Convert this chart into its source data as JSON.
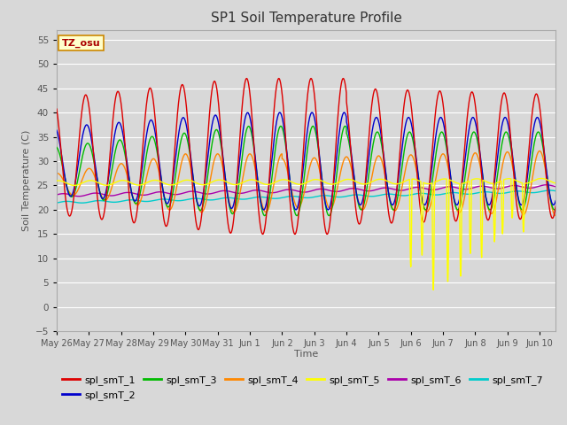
{
  "title": "SP1 Soil Temperature Profile",
  "xlabel": "Time",
  "ylabel": "Soil Temperature (C)",
  "ylim": [
    -5,
    57
  ],
  "yticks": [
    -5,
    0,
    5,
    10,
    15,
    20,
    25,
    30,
    35,
    40,
    45,
    50,
    55
  ],
  "annotation_text": "TZ_osu",
  "annotation_bg": "#ffffcc",
  "annotation_border": "#cc8800",
  "series_colors": {
    "spl_smT_1": "#dd0000",
    "spl_smT_2": "#0000cc",
    "spl_smT_3": "#00bb00",
    "spl_smT_4": "#ff8800",
    "spl_smT_5": "#ffff00",
    "spl_smT_6": "#aa00aa",
    "spl_smT_7": "#00cccc"
  },
  "bg_color": "#d8d8d8",
  "grid_color": "#ffffff",
  "title_fontsize": 11,
  "axis_label_color": "#555555",
  "legend_fontsize": 8,
  "n_days": 15.5,
  "day_labels": [
    "May 26",
    "May 27",
    "May 28",
    "May 29",
    "May 30",
    "May 31",
    "Jun 1",
    "Jun 2",
    "Jun 3",
    "Jun 4",
    "Jun 5",
    "Jun 6",
    "Jun 7",
    "Jun 8",
    "Jun 9",
    "Jun 10"
  ]
}
